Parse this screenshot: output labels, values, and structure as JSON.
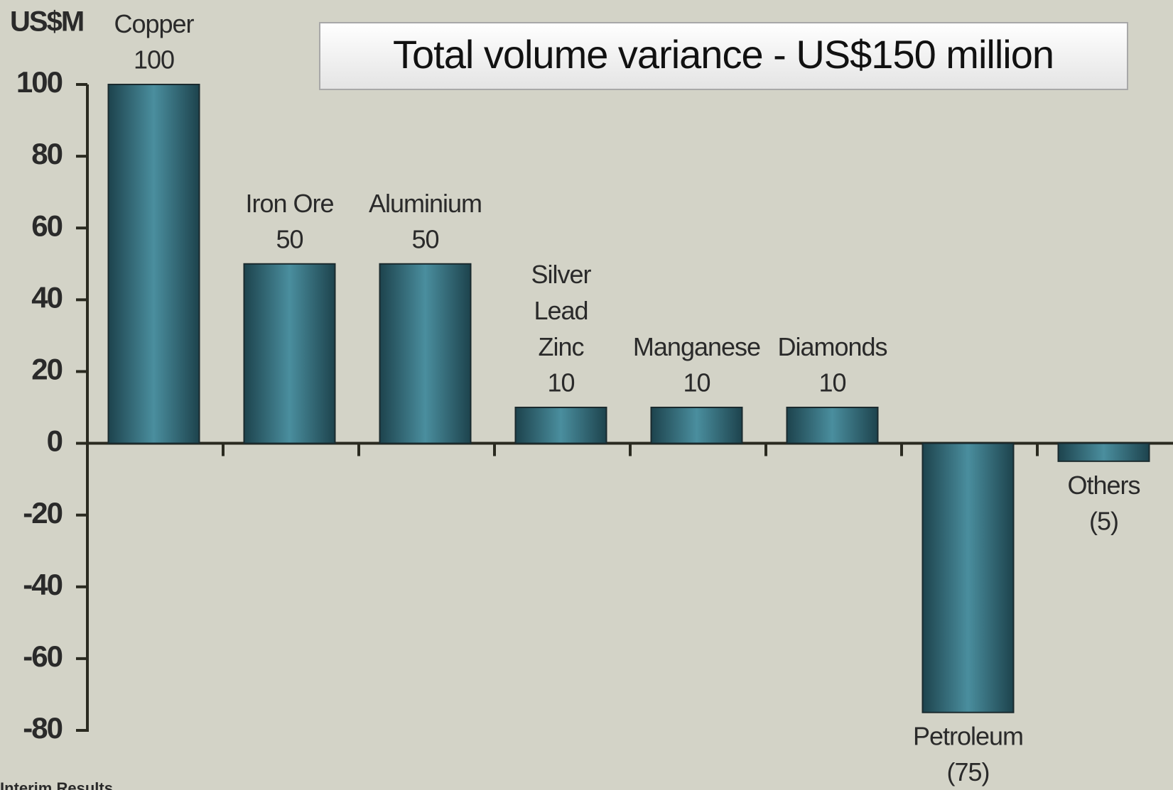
{
  "chart_data": {
    "type": "bar",
    "title": "Total volume variance - US$150 million",
    "y_axis_label": "US$M",
    "categories": [
      "Copper",
      "Iron Ore",
      "Aluminium",
      "Silver\nLead\nZinc",
      "Manganese",
      "Diamonds",
      "Petroleum",
      "Others"
    ],
    "values": [
      100,
      50,
      50,
      10,
      10,
      10,
      -75,
      -5
    ],
    "value_labels": [
      "100",
      "50",
      "50",
      "10",
      "10",
      "10",
      "(75)",
      "(5)"
    ],
    "color": "#3f7f8e",
    "ylim": [
      -80,
      100
    ],
    "yticks": [
      -80,
      -60,
      -40,
      -20,
      0,
      20,
      40,
      60,
      80,
      100
    ],
    "footer": "Interim Results"
  }
}
